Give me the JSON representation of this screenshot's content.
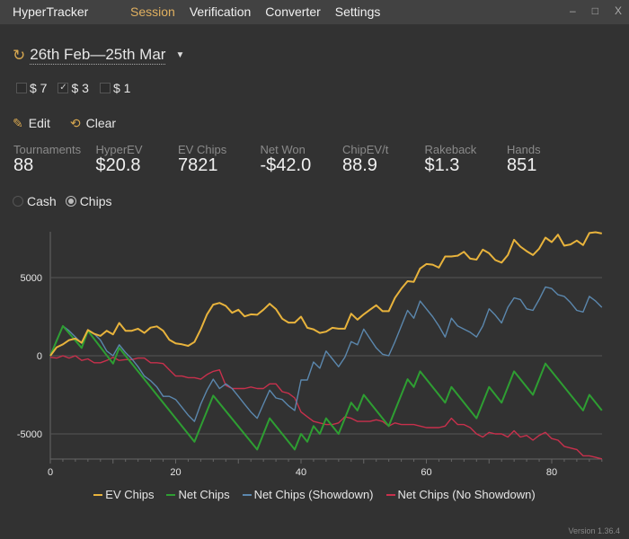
{
  "app_title": "HyperTracker",
  "nav": [
    {
      "label": "Session",
      "active": true
    },
    {
      "label": "Verification"
    },
    {
      "label": "Converter"
    },
    {
      "label": "Settings"
    }
  ],
  "window_controls": {
    "minimize": "–",
    "maximize": "□",
    "close": "X"
  },
  "date_range": "26th Feb—25th Mar",
  "buyins": [
    {
      "label": "$ 7",
      "checked": false
    },
    {
      "label": "$ 3",
      "checked": true
    },
    {
      "label": "$ 1",
      "checked": false
    }
  ],
  "actions": {
    "edit": "Edit",
    "clear": "Clear"
  },
  "stats": [
    {
      "label": "Tournaments",
      "value": "88"
    },
    {
      "label": "HyperEV",
      "value": "$20.8"
    },
    {
      "label": "EV Chips",
      "value": "7821"
    },
    {
      "label": "Net Won",
      "value": "-$42.0"
    },
    {
      "label": "ChipEV/t",
      "value": "88.9"
    },
    {
      "label": "Rakeback",
      "value": "$1.3"
    },
    {
      "label": "Hands",
      "value": "851"
    }
  ],
  "mode": {
    "options": [
      "Cash",
      "Chips"
    ],
    "selected": "Chips"
  },
  "version": "Version 1.36.4",
  "colors": {
    "accent": "#e0b060",
    "background": "#323232"
  },
  "chart_data": {
    "type": "line",
    "xlim": [
      0,
      88
    ],
    "ylim": [
      -6600,
      7950
    ],
    "xticks": [
      0,
      20,
      40,
      60,
      80
    ],
    "yticks": [
      -5000,
      0,
      5000
    ],
    "grid": true,
    "legend": "bottom",
    "series": [
      {
        "name": "EV Chips",
        "color": "#e8b33c",
        "y": [
          0,
          540,
          730,
          1000,
          1100,
          830,
          1650,
          1400,
          1270,
          1600,
          1370,
          2100,
          1600,
          1600,
          1730,
          1460,
          1800,
          1880,
          1600,
          1020,
          790,
          730,
          630,
          880,
          1690,
          2650,
          3270,
          3380,
          3190,
          2750,
          2940,
          2520,
          2650,
          2620,
          2940,
          3330,
          2980,
          2370,
          2120,
          2120,
          2500,
          1790,
          1690,
          1460,
          1540,
          1790,
          1730,
          1730,
          2690,
          2310,
          2650,
          2940,
          3230,
          2850,
          2850,
          3710,
          4290,
          4770,
          4730,
          5580,
          5870,
          5830,
          5640,
          6350,
          6350,
          6400,
          6650,
          6210,
          6150,
          6790,
          6560,
          6120,
          5960,
          6440,
          7420,
          6980,
          6690,
          6440,
          6850,
          7560,
          7270,
          7750,
          7040,
          7120,
          7370,
          7080,
          7850,
          7900,
          7821
        ]
      },
      {
        "name": "Net Chips",
        "color": "#2e9e32",
        "points": [
          [
            0,
            0
          ],
          [
            2,
            1900
          ],
          [
            5,
            500
          ],
          [
            6,
            1600
          ],
          [
            10,
            -500
          ],
          [
            11,
            500
          ],
          [
            23,
            -5500
          ],
          [
            26,
            -2550
          ],
          [
            33,
            -6000
          ],
          [
            35,
            -4000
          ],
          [
            39,
            -6000
          ],
          [
            40,
            -5000
          ],
          [
            41,
            -5500
          ],
          [
            42,
            -4500
          ],
          [
            43,
            -5000
          ],
          [
            44,
            -4000
          ],
          [
            46,
            -5000
          ],
          [
            48,
            -3000
          ],
          [
            49,
            -3500
          ],
          [
            50,
            -2500
          ],
          [
            54,
            -4500
          ],
          [
            57,
            -1500
          ],
          [
            58,
            -2000
          ],
          [
            59,
            -1000
          ],
          [
            63,
            -3000
          ],
          [
            64,
            -2000
          ],
          [
            68,
            -4000
          ],
          [
            70,
            -2000
          ],
          [
            72,
            -3000
          ],
          [
            74,
            -1000
          ],
          [
            77,
            -2500
          ],
          [
            79,
            -500
          ],
          [
            85,
            -3500
          ],
          [
            86,
            -2500
          ],
          [
            88,
            -3500
          ]
        ]
      },
      {
        "name": "Net Chips (Showdown)",
        "color": "#5b87ad",
        "y": [
          0,
          1000,
          1900,
          1600,
          1200,
          800,
          1600,
          1400,
          1000,
          300,
          0,
          700,
          200,
          -200,
          -700,
          -1300,
          -1600,
          -2000,
          -2600,
          -2600,
          -2800,
          -3300,
          -3800,
          -4200,
          -3100,
          -2200,
          -1500,
          -2100,
          -1800,
          -2100,
          -2600,
          -3100,
          -3600,
          -4000,
          -3100,
          -2200,
          -2700,
          -2800,
          -3200,
          -3500,
          -1550,
          -1550,
          -400,
          -800,
          300,
          -200,
          -700,
          -100,
          900,
          700,
          1700,
          1100,
          500,
          100,
          0,
          900,
          1900,
          2900,
          2400,
          3500,
          3000,
          2500,
          1900,
          1200,
          2400,
          1900,
          1700,
          1500,
          1200,
          1900,
          3000,
          2600,
          2100,
          3100,
          3700,
          3600,
          3000,
          2900,
          3600,
          4400,
          4300,
          3900,
          3800,
          3400,
          2900,
          2800,
          3800,
          3500,
          3100
        ]
      },
      {
        "name": "Net Chips (No Showdown)",
        "color": "#c8304c",
        "y": [
          -100,
          -150,
          0,
          -150,
          0,
          -300,
          -200,
          -450,
          -450,
          -300,
          -100,
          -300,
          -250,
          -250,
          -150,
          -150,
          -450,
          -450,
          -500,
          -900,
          -1300,
          -1300,
          -1400,
          -1400,
          -1500,
          -1200,
          -1000,
          -900,
          -1900,
          -2100,
          -2100,
          -2100,
          -2000,
          -2100,
          -2100,
          -1800,
          -1800,
          -2300,
          -2400,
          -2700,
          -3600,
          -3900,
          -4200,
          -4300,
          -4400,
          -4400,
          -4300,
          -3900,
          -4000,
          -4200,
          -4200,
          -4200,
          -4100,
          -4200,
          -4500,
          -4300,
          -4400,
          -4400,
          -4400,
          -4500,
          -4600,
          -4600,
          -4600,
          -4500,
          -4000,
          -4400,
          -4400,
          -4600,
          -5000,
          -5200,
          -4900,
          -5000,
          -5000,
          -5200,
          -4800,
          -5200,
          -5100,
          -5400,
          -5100,
          -4900,
          -5300,
          -5400,
          -5800,
          -5900,
          -6000,
          -6400,
          -6400,
          -6500,
          -6600
        ]
      }
    ]
  }
}
